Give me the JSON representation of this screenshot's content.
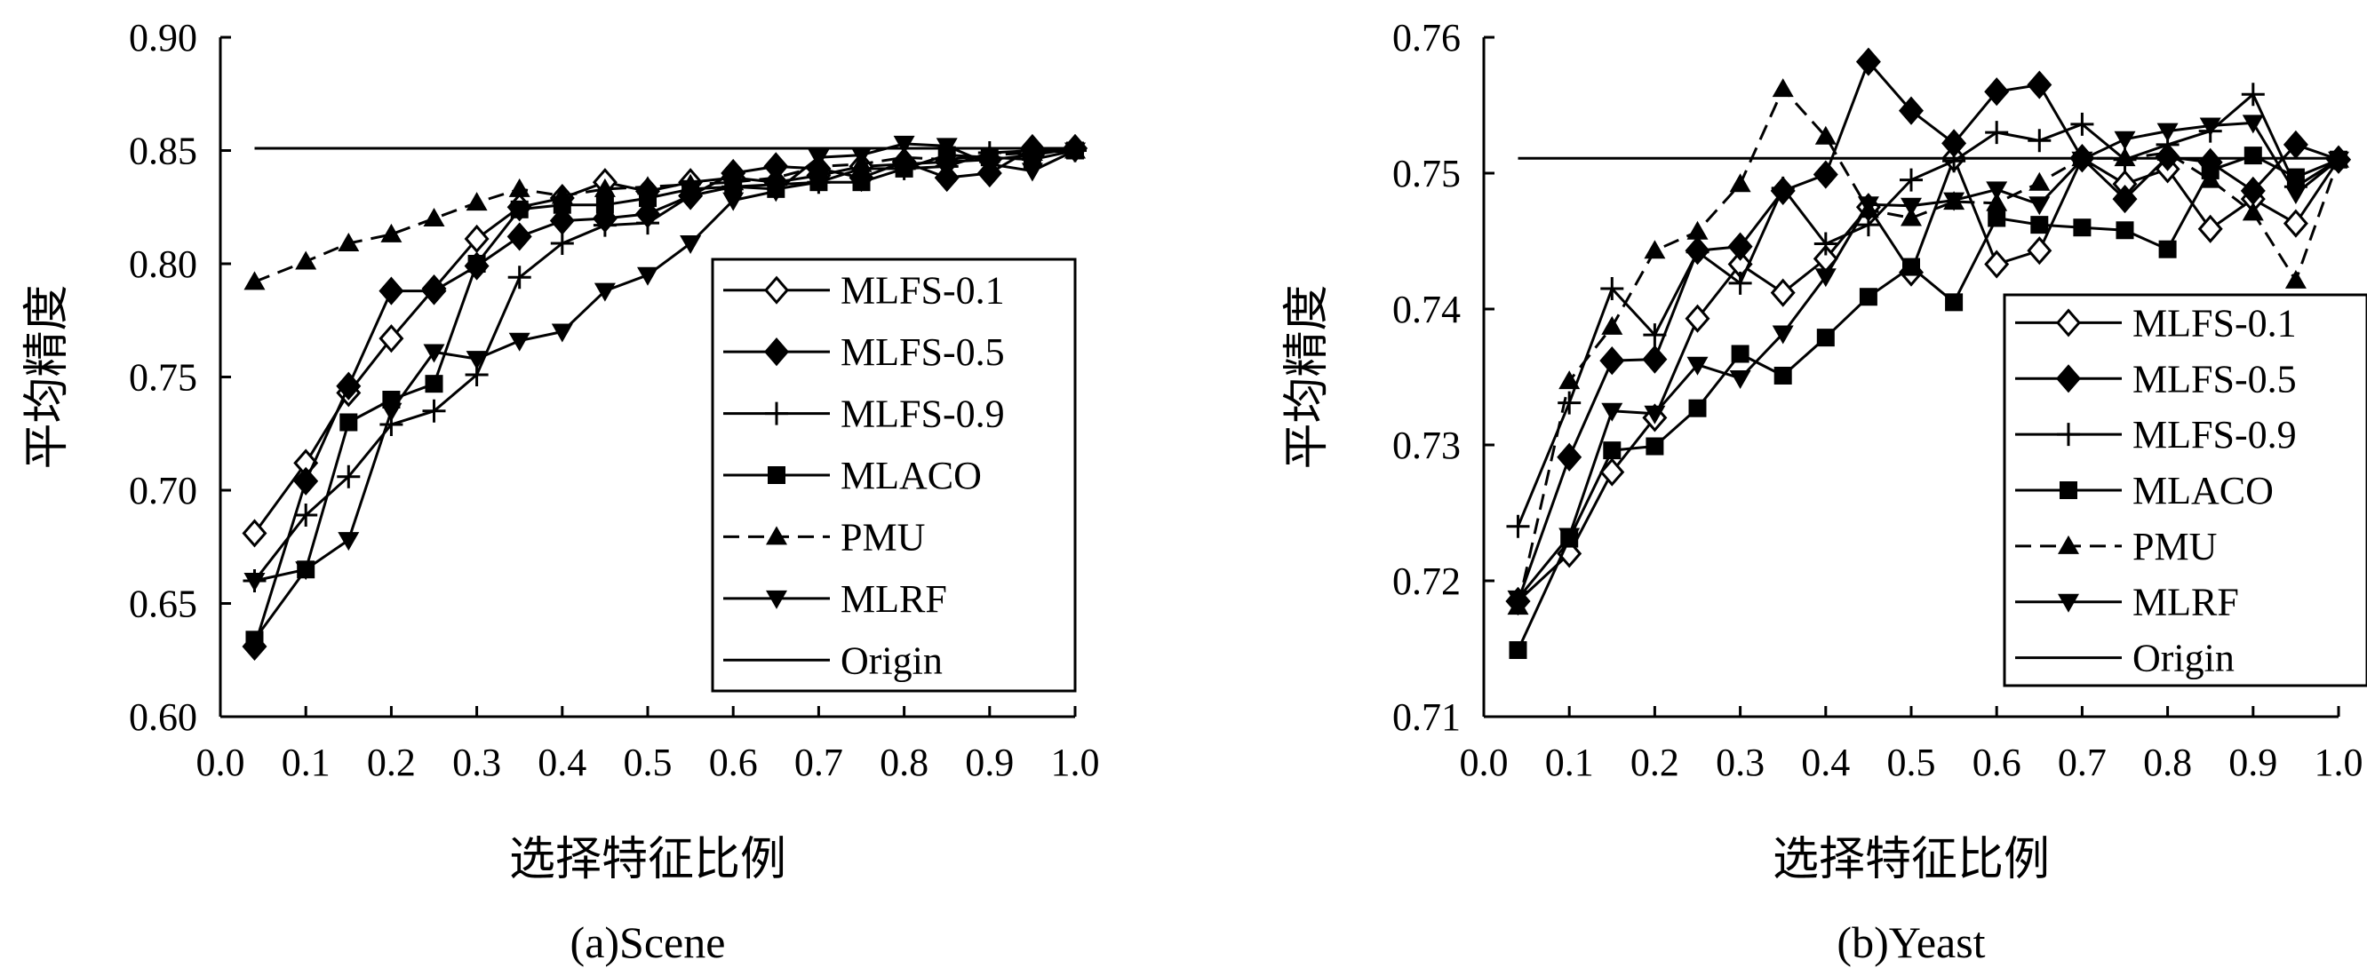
{
  "chart_data": [
    {
      "type": "line",
      "caption": "(a)Scene",
      "xlabel": "选择特征比例",
      "ylabel": "平均精度",
      "xlim": [
        0.0,
        1.0
      ],
      "ylim": [
        0.6,
        0.9
      ],
      "xticks": [
        "0.0",
        "0.1",
        "0.2",
        "0.3",
        "0.4",
        "0.5",
        "0.6",
        "0.7",
        "0.8",
        "0.9",
        "1.0"
      ],
      "yticks": [
        "0.60",
        "0.65",
        "0.70",
        "0.75",
        "0.80",
        "0.85",
        "0.90"
      ],
      "legend": "right",
      "series": [
        {
          "name": "MLFS-0.1",
          "marker": "diamond-open",
          "dash": "solid",
          "x": [
            0.04,
            0.1,
            0.15,
            0.2,
            0.25,
            0.3,
            0.35,
            0.4,
            0.45,
            0.5,
            0.55,
            0.6,
            0.65,
            0.7,
            0.75,
            0.8,
            0.85,
            0.9,
            0.95,
            1.0
          ],
          "y": [
            0.681,
            0.712,
            0.743,
            0.767,
            0.789,
            0.811,
            0.825,
            0.829,
            0.836,
            0.832,
            0.836,
            0.838,
            0.836,
            0.839,
            0.843,
            0.844,
            0.845,
            0.846,
            0.848,
            0.851
          ]
        },
        {
          "name": "MLFS-0.5",
          "marker": "diamond",
          "dash": "solid",
          "x": [
            0.04,
            0.1,
            0.15,
            0.2,
            0.25,
            0.3,
            0.35,
            0.4,
            0.45,
            0.5,
            0.55,
            0.6,
            0.65,
            0.7,
            0.75,
            0.8,
            0.85,
            0.9,
            0.95,
            1.0
          ],
          "y": [
            0.631,
            0.704,
            0.746,
            0.788,
            0.788,
            0.799,
            0.812,
            0.819,
            0.82,
            0.822,
            0.83,
            0.84,
            0.843,
            0.842,
            0.838,
            0.845,
            0.838,
            0.84,
            0.851,
            0.851
          ]
        },
        {
          "name": "MLFS-0.9",
          "marker": "plus",
          "dash": "solid",
          "x": [
            0.04,
            0.1,
            0.15,
            0.2,
            0.25,
            0.3,
            0.35,
            0.4,
            0.45,
            0.5,
            0.55,
            0.6,
            0.65,
            0.7,
            0.75,
            0.8,
            0.85,
            0.9,
            0.95,
            1.0
          ],
          "y": [
            0.66,
            0.689,
            0.706,
            0.729,
            0.735,
            0.751,
            0.794,
            0.809,
            0.817,
            0.818,
            0.83,
            0.834,
            0.835,
            0.836,
            0.842,
            0.842,
            0.843,
            0.849,
            0.85,
            0.85
          ]
        },
        {
          "name": "MLACO",
          "marker": "square",
          "dash": "solid",
          "x": [
            0.04,
            0.1,
            0.15,
            0.2,
            0.25,
            0.3,
            0.35,
            0.4,
            0.45,
            0.5,
            0.55,
            0.6,
            0.65,
            0.7,
            0.75,
            0.8,
            0.85,
            0.9,
            0.95,
            1.0
          ],
          "y": [
            0.634,
            0.665,
            0.73,
            0.74,
            0.747,
            0.8,
            0.824,
            0.826,
            0.826,
            0.829,
            0.833,
            0.834,
            0.833,
            0.836,
            0.836,
            0.842,
            0.848,
            0.847,
            0.846,
            0.85
          ]
        },
        {
          "name": "PMU",
          "marker": "triangle-up",
          "dash": "dashed",
          "x": [
            0.04,
            0.1,
            0.15,
            0.2,
            0.25,
            0.3,
            0.35,
            0.4,
            0.45,
            0.5,
            0.55,
            0.6,
            0.65,
            0.7,
            0.75,
            0.8,
            0.85,
            0.9,
            0.95,
            1.0
          ],
          "y": [
            0.792,
            0.801,
            0.809,
            0.813,
            0.82,
            0.827,
            0.833,
            0.83,
            0.833,
            0.834,
            0.835,
            0.836,
            0.838,
            0.843,
            0.844,
            0.847,
            0.846,
            0.848,
            0.849,
            0.85
          ]
        },
        {
          "name": "MLRF",
          "marker": "triangle-down",
          "dash": "solid",
          "x": [
            0.04,
            0.1,
            0.15,
            0.2,
            0.25,
            0.3,
            0.35,
            0.4,
            0.45,
            0.5,
            0.55,
            0.6,
            0.65,
            0.7,
            0.75,
            0.8,
            0.85,
            0.9,
            0.95,
            1.0
          ],
          "y": [
            0.66,
            0.665,
            0.678,
            0.735,
            0.761,
            0.758,
            0.766,
            0.77,
            0.788,
            0.795,
            0.809,
            0.828,
            0.832,
            0.847,
            0.848,
            0.853,
            0.852,
            0.844,
            0.841,
            0.85
          ]
        },
        {
          "name": "Origin",
          "marker": "none",
          "dash": "solid",
          "x": [
            0.04,
            1.0
          ],
          "y": [
            0.851,
            0.851
          ]
        }
      ]
    },
    {
      "type": "line",
      "caption": "(b)Yeast",
      "xlabel": "选择特征比例",
      "ylabel": "平均精度",
      "xlim": [
        0.0,
        1.0
      ],
      "ylim": [
        0.71,
        0.76
      ],
      "xticks": [
        "0.0",
        "0.1",
        "0.2",
        "0.3",
        "0.4",
        "0.5",
        "0.6",
        "0.7",
        "0.8",
        "0.9",
        "1.0"
      ],
      "yticks": [
        "0.71",
        "0.72",
        "0.73",
        "0.74",
        "0.75",
        "0.76"
      ],
      "legend": "right",
      "series": [
        {
          "name": "MLFS-0.1",
          "marker": "diamond-open",
          "dash": "solid",
          "x": [
            0.04,
            0.1,
            0.15,
            0.2,
            0.25,
            0.3,
            0.35,
            0.4,
            0.45,
            0.5,
            0.55,
            0.6,
            0.65,
            0.7,
            0.75,
            0.8,
            0.85,
            0.9,
            0.95,
            1.0
          ],
          "y": [
            0.7185,
            0.722,
            0.728,
            0.732,
            0.7393,
            0.7433,
            0.7412,
            0.7437,
            0.7475,
            0.7427,
            0.7511,
            0.7433,
            0.7443,
            0.7511,
            0.7492,
            0.7503,
            0.7459,
            0.7481,
            0.7463,
            0.751
          ]
        },
        {
          "name": "MLFS-0.5",
          "marker": "diamond",
          "dash": "solid",
          "x": [
            0.04,
            0.1,
            0.15,
            0.2,
            0.25,
            0.3,
            0.35,
            0.4,
            0.45,
            0.5,
            0.55,
            0.6,
            0.65,
            0.7,
            0.75,
            0.8,
            0.85,
            0.9,
            0.95,
            1.0
          ],
          "y": [
            0.7185,
            0.7291,
            0.7362,
            0.7363,
            0.7443,
            0.7446,
            0.7487,
            0.7499,
            0.7582,
            0.7546,
            0.7522,
            0.756,
            0.7565,
            0.7511,
            0.7481,
            0.7512,
            0.7508,
            0.7487,
            0.7521,
            0.751
          ]
        },
        {
          "name": "MLFS-0.9",
          "marker": "plus",
          "dash": "solid",
          "x": [
            0.04,
            0.1,
            0.15,
            0.2,
            0.25,
            0.3,
            0.35,
            0.4,
            0.45,
            0.5,
            0.55,
            0.6,
            0.65,
            0.7,
            0.75,
            0.8,
            0.85,
            0.9,
            0.95,
            1.0
          ],
          "y": [
            0.724,
            0.7331,
            0.7415,
            0.7381,
            0.7442,
            0.7419,
            0.7489,
            0.7448,
            0.7462,
            0.7495,
            0.7509,
            0.753,
            0.7524,
            0.7536,
            0.751,
            0.7521,
            0.7531,
            0.7558,
            0.749,
            0.751
          ]
        },
        {
          "name": "MLACO",
          "marker": "square",
          "dash": "solid",
          "x": [
            0.04,
            0.1,
            0.15,
            0.2,
            0.25,
            0.3,
            0.35,
            0.4,
            0.45,
            0.5,
            0.55,
            0.6,
            0.65,
            0.7,
            0.75,
            0.8,
            0.85,
            0.9,
            0.95,
            1.0
          ],
          "y": [
            0.7149,
            0.7231,
            0.7296,
            0.7299,
            0.7327,
            0.7367,
            0.7351,
            0.7379,
            0.7409,
            0.7431,
            0.7405,
            0.7467,
            0.7462,
            0.746,
            0.7458,
            0.7444,
            0.7502,
            0.7513,
            0.7497,
            0.751
          ]
        },
        {
          "name": "PMU",
          "marker": "triangle-up",
          "dash": "dashed",
          "x": [
            0.04,
            0.1,
            0.15,
            0.2,
            0.25,
            0.3,
            0.35,
            0.4,
            0.45,
            0.5,
            0.55,
            0.6,
            0.65,
            0.7,
            0.75,
            0.8,
            0.85,
            0.9,
            0.95,
            1.0
          ],
          "y": [
            0.7181,
            0.7347,
            0.7387,
            0.7443,
            0.7457,
            0.7492,
            0.7562,
            0.7527,
            0.7473,
            0.7467,
            0.7479,
            0.7478,
            0.7493,
            0.7511,
            0.7511,
            0.7515,
            0.7495,
            0.7471,
            0.7421,
            0.751
          ]
        },
        {
          "name": "MLRF",
          "marker": "triangle-down",
          "dash": "solid",
          "x": [
            0.04,
            0.1,
            0.15,
            0.2,
            0.25,
            0.3,
            0.35,
            0.4,
            0.45,
            0.5,
            0.55,
            0.6,
            0.65,
            0.7,
            0.75,
            0.8,
            0.85,
            0.9,
            0.95,
            1.0
          ],
          "y": [
            0.7187,
            0.7233,
            0.7325,
            0.7323,
            0.7359,
            0.7349,
            0.7382,
            0.7424,
            0.7477,
            0.7476,
            0.748,
            0.7488,
            0.7477,
            0.751,
            0.7525,
            0.7531,
            0.7535,
            0.7537,
            0.7485,
            0.751
          ]
        },
        {
          "name": "Origin",
          "marker": "none",
          "dash": "solid",
          "x": [
            0.04,
            1.0
          ],
          "y": [
            0.7511,
            0.7511
          ]
        }
      ]
    }
  ]
}
